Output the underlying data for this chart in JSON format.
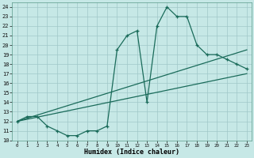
{
  "xlabel": "Humidex (Indice chaleur)",
  "bg_color": "#c6e8e6",
  "line_color": "#1a6b5a",
  "grid_color": "#a0c8c8",
  "xlim": [
    -0.5,
    23.5
  ],
  "ylim": [
    10,
    24.5
  ],
  "xticks": [
    0,
    1,
    2,
    3,
    4,
    5,
    6,
    7,
    8,
    9,
    10,
    11,
    12,
    13,
    14,
    15,
    16,
    17,
    18,
    19,
    20,
    21,
    22,
    23
  ],
  "yticks": [
    10,
    11,
    12,
    13,
    14,
    15,
    16,
    17,
    18,
    19,
    20,
    21,
    22,
    23,
    24
  ],
  "main_curve_x": [
    0,
    1,
    2,
    3,
    4,
    5,
    6,
    7,
    8,
    9,
    10,
    11,
    12,
    13,
    14,
    15,
    16,
    17,
    18,
    19,
    20,
    21,
    22,
    23
  ],
  "main_curve_y": [
    12,
    12.5,
    12.5,
    11.5,
    11,
    10.5,
    10.5,
    11,
    11,
    11.5,
    19.5,
    21,
    21.5,
    14,
    22,
    24,
    23,
    23,
    20,
    19,
    19,
    18.5,
    18,
    17.5
  ],
  "line1_x": [
    0,
    23
  ],
  "line1_y": [
    12,
    19.5
  ],
  "line2_x": [
    0,
    23
  ],
  "line2_y": [
    12,
    17
  ]
}
